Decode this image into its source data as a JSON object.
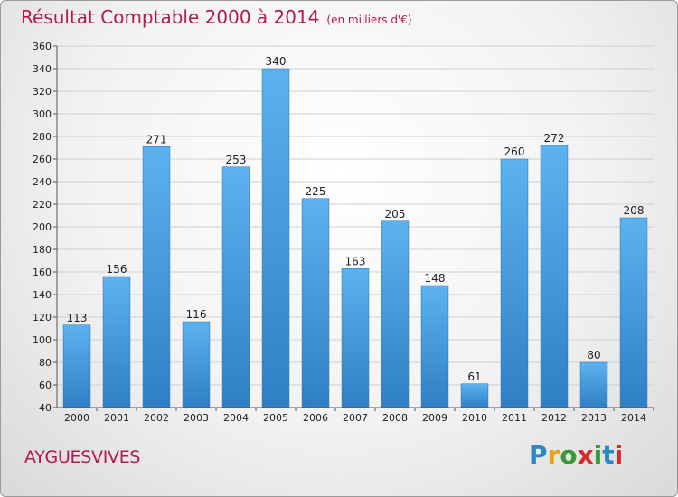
{
  "title": "Résultat Comptable 2000 à 2014",
  "subtitle": "(en milliers d'€)",
  "commune": "AYGUESVIVES",
  "logo": {
    "letters": [
      "P",
      "r",
      "o",
      "x",
      "i",
      "t",
      "i"
    ],
    "colors": [
      "#2a87c8",
      "#e8a21a",
      "#3a9a3a",
      "#d42a2a",
      "#3a9a3a",
      "#2a87c8",
      "#d42a2a"
    ]
  },
  "chart_data": {
    "type": "bar",
    "title": "Résultat Comptable 2000 à 2014",
    "subtitle": "(en milliers d'€)",
    "xlabel": "",
    "ylabel": "",
    "categories": [
      "2000",
      "2001",
      "2002",
      "2003",
      "2004",
      "2005",
      "2006",
      "2007",
      "2008",
      "2009",
      "2010",
      "2011",
      "2012",
      "2013",
      "2014"
    ],
    "values": [
      113,
      156,
      271,
      116,
      253,
      340,
      225,
      163,
      205,
      148,
      61,
      260,
      272,
      80,
      208
    ],
    "ylim": [
      40,
      360
    ],
    "yticks": [
      40,
      60,
      80,
      100,
      120,
      140,
      160,
      180,
      200,
      220,
      240,
      260,
      280,
      300,
      320,
      340,
      360
    ],
    "grid": true,
    "bar_color": "#3d9ae0",
    "legend": "none"
  }
}
